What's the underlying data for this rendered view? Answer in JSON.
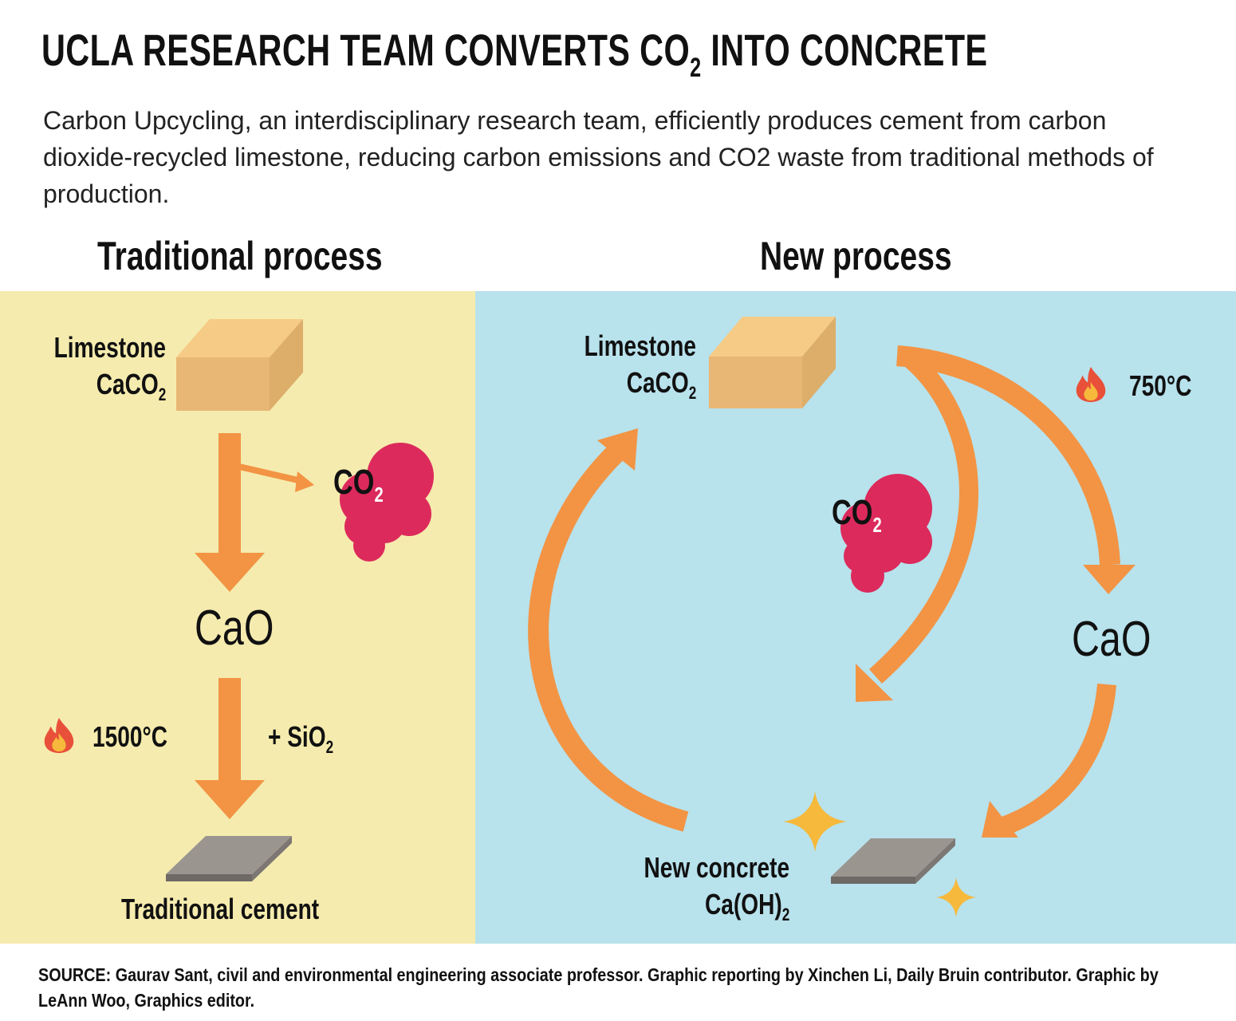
{
  "header": {
    "title_main": "UCLA RESEARCH TEAM CONVERTS CO",
    "title_sub": "2",
    "title_end": " INTO CONCRETE",
    "subtitle": "Carbon Upcycling, an interdisciplinary research team, efficiently produces cement from carbon dioxide-recycled limestone, reducing carbon emissions and CO2 waste from traditional methods of production."
  },
  "traditional": {
    "heading": "Traditional process",
    "limestone": "Limestone",
    "formula": "CaCO",
    "formula_sub": "2",
    "co2": "CO",
    "co2_sub": "2",
    "cao": "CaO",
    "temp": "1500°C",
    "additive": "+ SiO",
    "additive_sub": "2",
    "product": "Traditional cement"
  },
  "new": {
    "heading": "New process",
    "limestone": "Limestone",
    "formula": "CaCO",
    "formula_sub": "2",
    "temp": "750°C",
    "co2": "CO",
    "co2_sub": "2",
    "cao": "CaO",
    "product": "New concrete",
    "product_formula": "Ca(OH)",
    "product_formula_sub": "2"
  },
  "footer": {
    "source": "SOURCE: Gaurav Sant, civil and environmental engineering associate professor. Graphic reporting by Xinchen Li, Daily Bruin contributor. Graphic by LeAnn Woo, Graphics editor."
  },
  "colors": {
    "left_panel": "#f5ebae",
    "right_panel": "#b8e2ec",
    "arrow": "#f29444",
    "co2_cloud": "#dc2a5c",
    "block_top": "#f6cb86",
    "block_front": "#e8b775",
    "block_side": "#ddad6a",
    "slab": "#9b9590",
    "sparkle": "#f6b93b",
    "flame": "#e8503a"
  },
  "icons": [
    "flame-icon",
    "sparkle-icon",
    "limestone-block-icon",
    "cement-slab-icon",
    "co2-cloud-icon"
  ]
}
